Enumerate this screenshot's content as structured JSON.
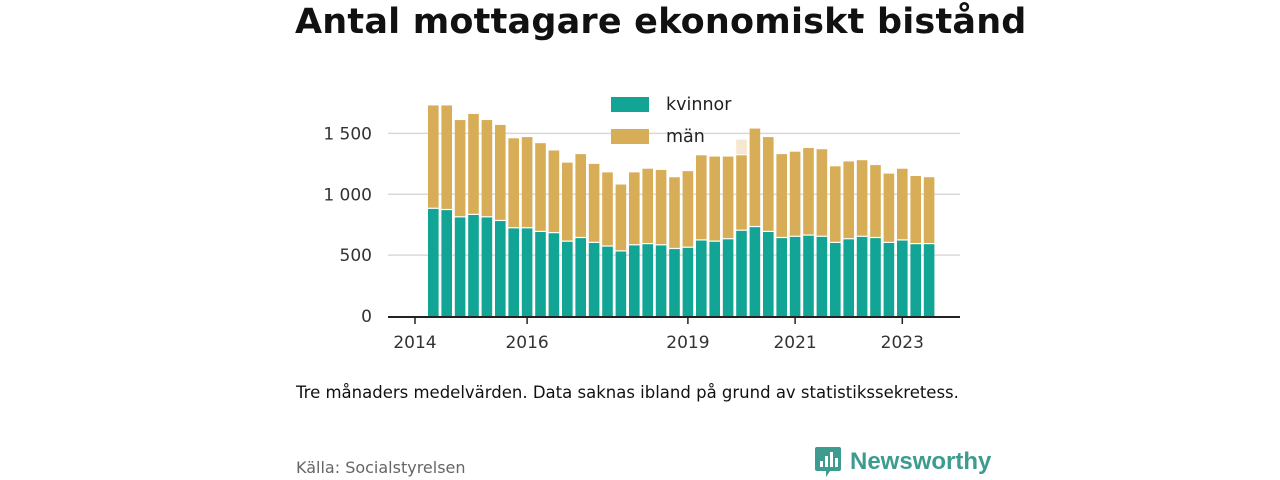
{
  "chart_data": {
    "type": "bar",
    "stacked": true,
    "title": "Antal mottagare ekonomiskt bistånd",
    "x_ticks": [
      "2014",
      "2016",
      "2019",
      "2021",
      "2023"
    ],
    "y_ticks": [
      "0",
      "500",
      "1 000",
      "1 500"
    ],
    "ylim": [
      0,
      1750
    ],
    "grid": "horizontal",
    "legend_position": "top-center",
    "series": [
      {
        "name": "kvinnor",
        "color": "#12a596",
        "values": [
          880,
          870,
          810,
          830,
          810,
          780,
          720,
          720,
          690,
          680,
          610,
          640,
          600,
          570,
          530,
          580,
          590,
          580,
          550,
          560,
          620,
          610,
          630,
          700,
          730,
          690,
          640,
          650,
          660,
          650,
          600,
          630,
          650,
          640,
          600,
          620,
          590,
          590
        ]
      },
      {
        "name": "män",
        "color": "#d8ad58",
        "values": [
          850,
          860,
          800,
          830,
          800,
          790,
          740,
          750,
          730,
          680,
          650,
          690,
          650,
          610,
          550,
          600,
          620,
          620,
          590,
          630,
          700,
          700,
          680,
          620,
          810,
          780,
          690,
          700,
          720,
          720,
          630,
          640,
          630,
          600,
          570,
          590,
          560,
          550
        ]
      }
    ],
    "missing_value_marks": [
      {
        "index": 23,
        "series": "män",
        "total": 1450
      }
    ]
  },
  "caption": "Tre månaders medelvärden. Data saknas ibland på grund av statistikssekretess.",
  "source": "Källa: Socialstyrelsen",
  "brand": {
    "name": "Newsworthy",
    "icon": "bar-chart-speech-bubble-icon",
    "color": "#3d9b8f"
  }
}
